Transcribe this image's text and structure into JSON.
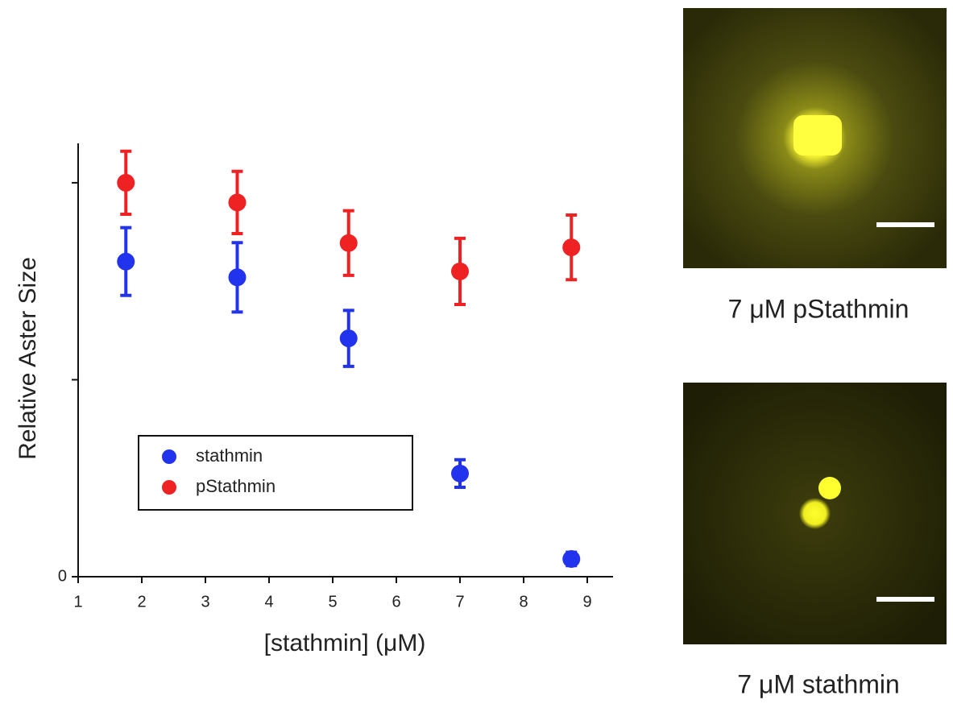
{
  "chart_data": {
    "type": "scatter",
    "ylabel": "Relative Aster Size",
    "xlabel": "[stathmin] (μM)",
    "xlim": [
      1,
      9.4
    ],
    "xticks": [
      1,
      2,
      3,
      4,
      5,
      6,
      7,
      8,
      9
    ],
    "ylim": [
      0,
      1.1
    ],
    "yticks": [
      0
    ],
    "y_unlabeled_ticks": [
      0.5,
      1
    ],
    "legend": "lower left",
    "series": [
      {
        "name": "stathmin",
        "color": "#2233ee",
        "x": [
          1.75,
          3.5,
          5.25,
          7,
          8.75
        ],
        "values": [
          0.8,
          0.76,
          0.605,
          0.262,
          0.045
        ],
        "errors": [
          0.086,
          0.088,
          0.071,
          0.035,
          0.017
        ]
      },
      {
        "name": "pStathmin",
        "color": "#ee2222",
        "x": [
          1.75,
          3.5,
          5.25,
          7,
          8.75
        ],
        "values": [
          1.0,
          0.95,
          0.847,
          0.775,
          0.836
        ],
        "errors": [
          0.08,
          0.079,
          0.082,
          0.084,
          0.082
        ]
      }
    ]
  },
  "images": [
    {
      "caption": "7 μM pStathmin",
      "color": "#ee2222"
    },
    {
      "caption": "7 μM stathmin",
      "color": "#2233ee"
    }
  ]
}
